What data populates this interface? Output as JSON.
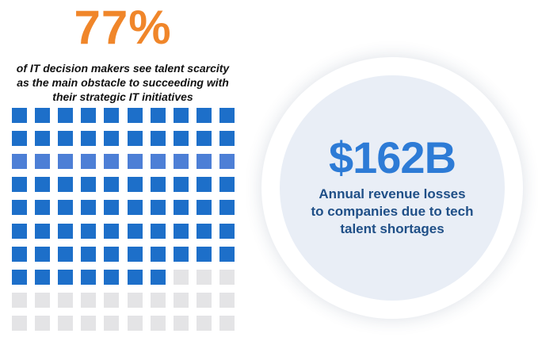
{
  "stat": {
    "percent": "77%",
    "caption_lines": [
      "of IT decision makers see talent scarcity",
      "as the main obstacle to succeeding with",
      "their strategic IT initiatives"
    ]
  },
  "chart_data": {
    "type": "waffle",
    "rows": 10,
    "columns": 10,
    "filled": 77,
    "total": 100,
    "highlight_row": 3
  },
  "revenue": {
    "amount": "$162B",
    "description_lines": [
      "Annual revenue losses",
      "to companies due to tech",
      "talent shortages"
    ]
  },
  "colors": {
    "percent_orange": "#f0862a",
    "cell_filled": "#1d6fc9",
    "cell_filled_highlight": "#4d7fd6",
    "cell_empty": "#e4e4e6",
    "circle_fill": "#e9eef6",
    "revenue_blue": "#2d7bd6",
    "desc_navy": "#1f4f87"
  }
}
